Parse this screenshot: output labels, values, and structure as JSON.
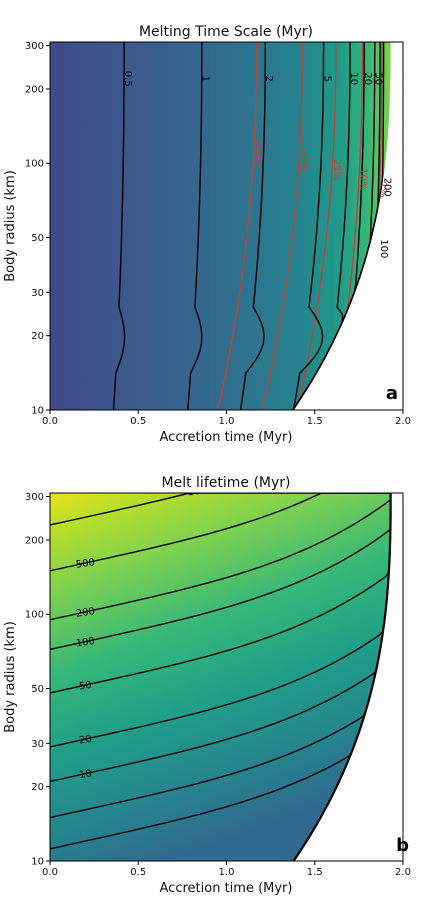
{
  "chart_data": [
    {
      "type": "contour",
      "panel_label": "a",
      "title": "Melting Time Scale (Myr)",
      "xlabel": "Accretion time (Myr)",
      "ylabel": "Body radius (km)",
      "xlim": [
        0.0,
        2.0
      ],
      "ylim": [
        10,
        310
      ],
      "yscale": "log",
      "x_ticks": [
        "0.0",
        "0.5",
        "1.0",
        "1.5",
        "2.0"
      ],
      "y_ticks": [
        "10",
        "20",
        "30",
        "50",
        "100",
        "200",
        "300"
      ],
      "y_tick_values": [
        10,
        20,
        30,
        50,
        100,
        200,
        300
      ],
      "colormap": "viridis",
      "black_contours": [
        {
          "label": "0.5",
          "value": 0.5,
          "x_top": 0.42,
          "x_bottom": 0.36,
          "hook": 0.04
        },
        {
          "label": "1",
          "value": 1,
          "x_top": 0.86,
          "x_bottom": 0.78,
          "hook": 0.05
        },
        {
          "label": "2",
          "value": 2,
          "x_top": 1.22,
          "x_bottom": 1.08,
          "hook": 0.08
        },
        {
          "label": "5",
          "value": 5,
          "x_top": 1.55,
          "x_bottom": 1.38,
          "hook": 0.1
        },
        {
          "label": "10",
          "value": 10,
          "x_top": 1.7,
          "x_bottom": 1.55,
          "hook": 0.1
        },
        {
          "label": "20",
          "value": 20,
          "x_top": 1.78,
          "x_bottom": 1.66,
          "hook": 0.08
        },
        {
          "label": "50",
          "value": 50,
          "x_top": 1.84,
          "x_bottom": 1.74,
          "hook": 0.06
        },
        {
          "label": "100",
          "value": 100,
          "x_top": 1.87,
          "x_bottom": 1.8,
          "hook": 0.04
        },
        {
          "label": "200",
          "value": 200,
          "x_top": 1.89,
          "x_bottom": 1.84,
          "hook": 0.03
        }
      ],
      "red_contours": [
        {
          "label": "100%",
          "x_top": 1.17,
          "x_bottom": 0.95
        },
        {
          "label": "50%",
          "x_top": 1.43,
          "x_bottom": 1.2
        },
        {
          "label": "25%",
          "x_top": 1.62,
          "x_bottom": 1.4
        },
        {
          "label": "10%",
          "x_top": 1.77,
          "x_bottom": 1.6
        },
        {
          "label": "1%",
          "x_top": 1.88,
          "x_bottom": 1.78
        }
      ],
      "colors": {
        "contour": "#000000",
        "melt_fraction": "#b5473a"
      }
    },
    {
      "type": "contour",
      "panel_label": "b",
      "title": "Melt lifetime (Myr)",
      "xlabel": "Accretion time (Myr)",
      "ylabel": "Body radius (km)",
      "xlim": [
        0.0,
        2.0
      ],
      "ylim": [
        10,
        310
      ],
      "yscale": "log",
      "x_ticks": [
        "0.0",
        "0.5",
        "1.0",
        "1.5",
        "2.0"
      ],
      "y_ticks": [
        "10",
        "20",
        "30",
        "50",
        "100",
        "200",
        "300"
      ],
      "y_tick_values": [
        10,
        20,
        30,
        50,
        100,
        200,
        300
      ],
      "colormap": "viridis",
      "contours": [
        {
          "label": "1000",
          "value": 1000,
          "radius_at_x0": 230
        },
        {
          "label": "500",
          "value": 500,
          "radius_at_x0": 150
        },
        {
          "label": "200",
          "value": 200,
          "radius_at_x0": 95
        },
        {
          "label": "100",
          "value": 100,
          "radius_at_x0": 72
        },
        {
          "label": "50",
          "value": 50,
          "radius_at_x0": 48
        },
        {
          "label": "20",
          "value": 20,
          "radius_at_x0": 29
        },
        {
          "label": "10",
          "value": 10,
          "radius_at_x0": 21
        },
        {
          "label": "",
          "value": 5,
          "radius_at_x0": 15
        },
        {
          "label": "",
          "value": 2,
          "radius_at_x0": 11.2
        }
      ],
      "x_boundary": 1.93,
      "colors": {
        "contour": "#000000"
      }
    }
  ]
}
